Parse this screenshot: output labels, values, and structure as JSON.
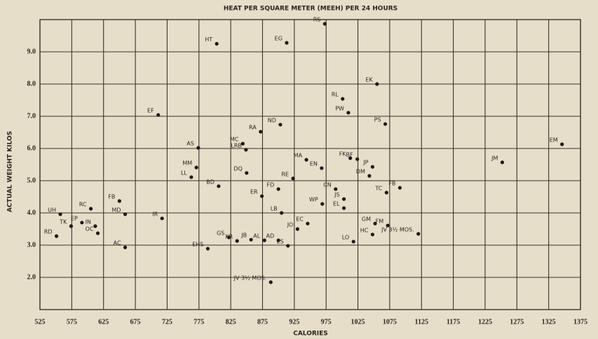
{
  "chart_data": {
    "type": "scatter",
    "title": "HEAT PER SQUARE METER (MEEH) PER 24 HOURS",
    "x_label": "CALORIES",
    "y_label": "ACTUAL WEIGHT KILOS",
    "color": "#1a1a1a",
    "grid": true,
    "xlim": [
      525,
      1375
    ],
    "ylim": [
      1,
      10
    ],
    "xticks": [
      525,
      575,
      625,
      675,
      725,
      775,
      825,
      875,
      925,
      975,
      1025,
      1075,
      1125,
      1175,
      1225,
      1275,
      1325,
      1375
    ],
    "yticks": [
      {
        "value": 2,
        "label": "2.0"
      },
      {
        "value": 3,
        "label": "3.0"
      },
      {
        "value": 4,
        "label": "4.0"
      },
      {
        "value": 5,
        "label": "5.0"
      },
      {
        "value": 6,
        "label": "6.0"
      },
      {
        "value": 7,
        "label": "7.0"
      },
      {
        "value": 8,
        "label": "8.0"
      },
      {
        "value": 9,
        "label": "9.0"
      }
    ],
    "labels": [
      "HT",
      "RS",
      "EG",
      "EK",
      "RL",
      "PW",
      "PS",
      "EF",
      "EM",
      "MC",
      "RA",
      "ND",
      "AS",
      "LRB",
      "MM",
      "LL",
      "DQ",
      "FK",
      "BF",
      "JP",
      "JM",
      "MA",
      "EN",
      "RE",
      "DM",
      "CN",
      "FD",
      "BD",
      "ER",
      "TC",
      "FB",
      "FB",
      "RC",
      "UH",
      "MD",
      "IR",
      "LB",
      "WP",
      "JS",
      "EL",
      "TK",
      "EP",
      "IN",
      "OC",
      "RD",
      "JO",
      "EC",
      "GS",
      "KR",
      "JB",
      "AL",
      "AD",
      "ES",
      "GM",
      "FM",
      "HC",
      "LO",
      "JV 3½ MOS.",
      "AC",
      "EHS",
      "JV 3½ MOS."
    ],
    "x": [
      803,
      973,
      913,
      1055,
      1001,
      1010,
      1068,
      711,
      1346,
      844,
      872,
      903,
      774,
      849,
      771,
      763,
      850,
      1013,
      1024,
      1048,
      1252,
      944,
      968,
      923,
      1043,
      990,
      900,
      806,
      874,
      1070,
      1091,
      650,
      605,
      557,
      659,
      717,
      905,
      969,
      1003,
      1003,
      574,
      591,
      612,
      616,
      551,
      930,
      946,
      822,
      835,
      857,
      878,
      900,
      915,
      1052,
      1072,
      1048,
      1018,
      1120,
      659,
      789,
      888
    ],
    "values": [
      9.25,
      9.87,
      9.28,
      8.0,
      7.54,
      7.11,
      6.76,
      7.04,
      6.13,
      6.15,
      6.52,
      6.74,
      6.02,
      5.96,
      5.41,
      5.11,
      5.24,
      5.7,
      5.67,
      5.43,
      5.57,
      5.65,
      5.39,
      5.07,
      5.15,
      4.74,
      4.74,
      4.83,
      4.52,
      4.63,
      4.78,
      4.37,
      4.13,
      3.96,
      3.96,
      3.83,
      4.0,
      4.28,
      4.43,
      4.15,
      3.59,
      3.7,
      3.59,
      3.37,
      3.28,
      3.5,
      3.67,
      3.24,
      3.13,
      3.17,
      3.15,
      3.15,
      2.98,
      3.67,
      3.61,
      3.33,
      3.11,
      3.35,
      2.93,
      2.89,
      1.85
    ]
  }
}
